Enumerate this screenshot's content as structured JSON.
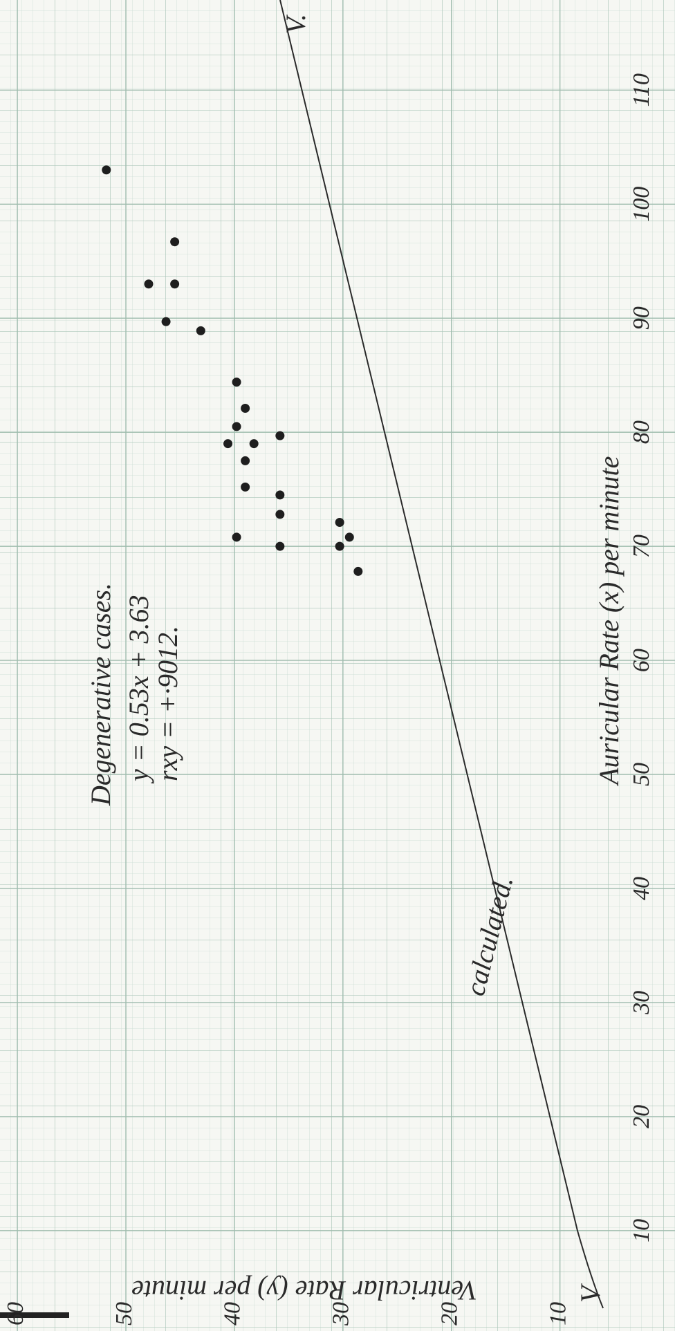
{
  "chart_data": {
    "type": "scatter",
    "title": "Degenerative cases.",
    "annotations": [
      "y = 0.53x + 3.63",
      "rxy = +·9012.",
      "calculated.",
      "V.",
      "V"
    ],
    "x_label": "Auricular Rate (x) per minute",
    "y_label": "Ventricular Rate (y) per minute",
    "x": [
      103.0,
      96.7,
      93.0,
      93.0,
      89.7,
      88.9,
      84.4,
      82.1,
      80.5,
      79.0,
      79.0,
      79.7,
      77.5,
      75.2,
      74.5,
      72.8,
      72.1,
      70.8,
      70.0,
      70.0,
      70.8,
      67.8
    ],
    "values": [
      51.8,
      45.5,
      47.9,
      45.5,
      46.3,
      43.1,
      39.8,
      39.0,
      39.8,
      40.6,
      38.2,
      35.8,
      39.0,
      39.0,
      35.8,
      35.8,
      30.3,
      39.8,
      35.8,
      30.3,
      29.4,
      28.6
    ],
    "color": "#1e1e1e",
    "xlim": [
      1.2,
      117.9
    ],
    "ylim": [
      -0.6,
      61.6
    ],
    "xticks": [
      10,
      20,
      30,
      40,
      50,
      60,
      70,
      80,
      90,
      100,
      110
    ],
    "yticks": [
      10,
      20,
      30,
      40,
      50,
      60
    ],
    "grid": true
  }
}
